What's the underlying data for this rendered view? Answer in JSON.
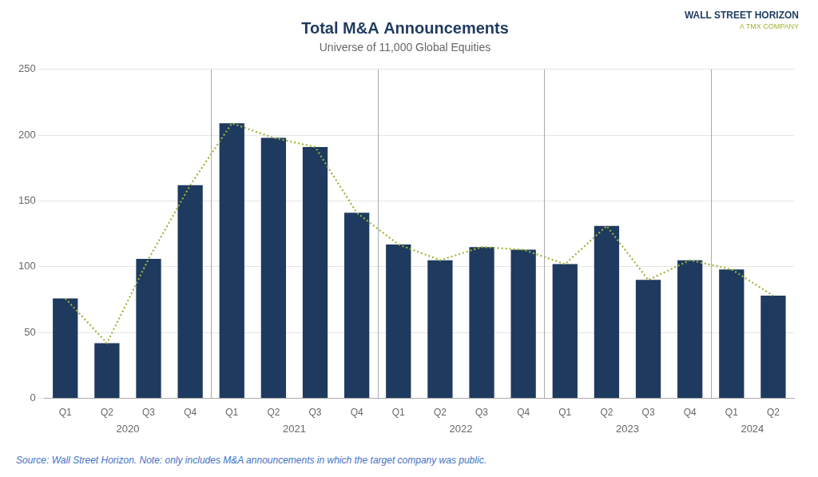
{
  "chart_data": {
    "type": "bar",
    "title": "Total M&A Announcements",
    "subtitle": "Universe of 11,000 Global Equities",
    "source": "Source: Wall Street Horizon. Note: only includes M&A announcements in which the target company was public.",
    "logo_lines": [
      "WALL STREET HORIZON",
      "A TMX COMPANY"
    ],
    "categories": [
      "Q1",
      "Q2",
      "Q3",
      "Q4",
      "Q1",
      "Q2",
      "Q3",
      "Q4",
      "Q1",
      "Q2",
      "Q3",
      "Q4",
      "Q1",
      "Q2",
      "Q3",
      "Q4",
      "Q1",
      "Q2"
    ],
    "x_groups": [
      {
        "label": "2020",
        "size": 4
      },
      {
        "label": "2021",
        "size": 4
      },
      {
        "label": "2022",
        "size": 4
      },
      {
        "label": "2023",
        "size": 4
      },
      {
        "label": "2024",
        "size": 2
      }
    ],
    "series": [
      {
        "type": "bar",
        "color": "#1e3a5f",
        "values": [
          76,
          42,
          106,
          162,
          209,
          198,
          191,
          141,
          117,
          105,
          115,
          113,
          102,
          131,
          90,
          105,
          98,
          78
        ]
      },
      {
        "type": "line",
        "color": "#9db535",
        "line_style": "dotted",
        "values": [
          76,
          42,
          106,
          162,
          209,
          198,
          191,
          141,
          117,
          105,
          115,
          113,
          102,
          131,
          90,
          105,
          98,
          78
        ]
      }
    ],
    "ylim": [
      0,
      250
    ],
    "yticks": [
      0,
      50,
      100,
      150,
      200,
      250
    ],
    "grid": true
  }
}
